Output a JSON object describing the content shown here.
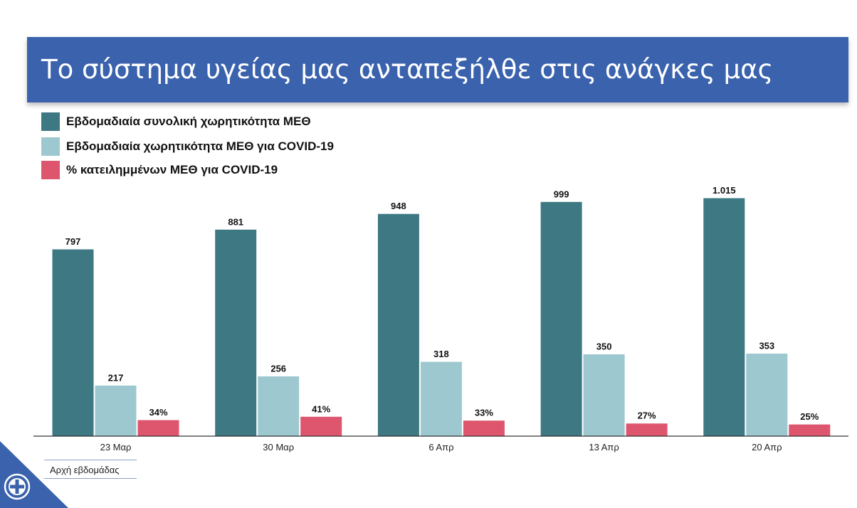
{
  "title": "Το σύστημα υγείας μας ανταπεξήλθε στις ανάγκες μας",
  "footer_label": "Αρχή εβδομάδας",
  "colors": {
    "banner": "#3a62ad",
    "series_total": "#3e7883",
    "series_covid": "#9ec8d0",
    "series_pct": "#de566e"
  },
  "chart_data": {
    "type": "bar",
    "categories": [
      "23 Μαρ",
      "30 Μαρ",
      "6 Απρ",
      "13 Απρ",
      "20 Απρ"
    ],
    "series": [
      {
        "name": "Εβδομαδιαία συνολική χωρητικότητα ΜΕΘ",
        "values": [
          797,
          881,
          948,
          999,
          1015
        ],
        "labels": [
          "797",
          "881",
          "948",
          "999",
          "1.015"
        ],
        "color": "#3e7883"
      },
      {
        "name": "Εβδομαδιαία χωρητικότητα ΜΕΘ για COVID-19",
        "values": [
          217,
          256,
          318,
          350,
          353
        ],
        "labels": [
          "217",
          "256",
          "318",
          "350",
          "353"
        ],
        "color": "#9ec8d0"
      },
      {
        "name": "% κατειλημμένων ΜΕΘ για COVID-19",
        "values": [
          34,
          41,
          33,
          27,
          25
        ],
        "labels": [
          "34%",
          "41%",
          "33%",
          "27%",
          "25%"
        ],
        "unit": "%",
        "color": "#de566e"
      }
    ],
    "grid": false,
    "legend_position": "top-left"
  }
}
